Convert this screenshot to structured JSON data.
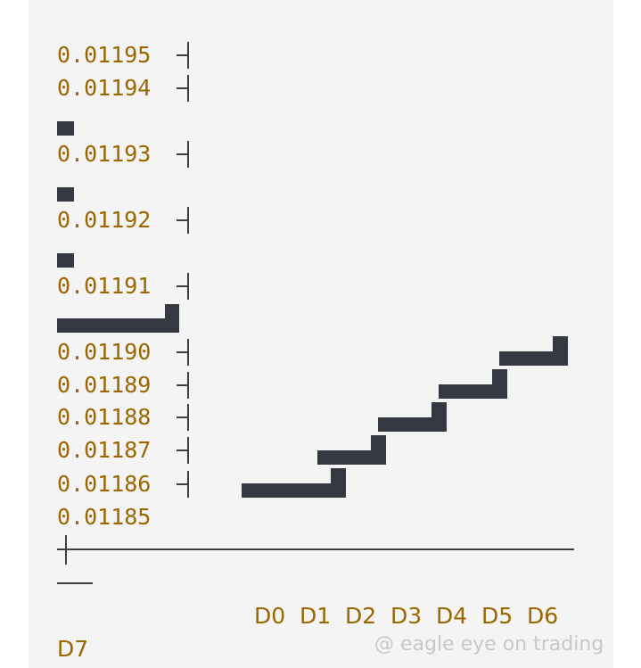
{
  "chart_data": {
    "type": "line",
    "style": "step",
    "title": "",
    "xlabel": "",
    "ylabel": "",
    "y_ticks": [
      "0.01195",
      "0.01194",
      "0.01193",
      "0.01192",
      "0.01191",
      "0.01190",
      "0.01189",
      "0.01188",
      "0.01187",
      "0.01186",
      "0.01185"
    ],
    "x_ticks": [
      "D0",
      "D1",
      "D2",
      "D3",
      "D4",
      "D5",
      "D6",
      "D7"
    ],
    "ylim": [
      0.01185,
      0.01195
    ],
    "grid": false,
    "series": [
      {
        "values": [
          0.01186,
          0.01187,
          0.01188,
          0.01189,
          0.0119
        ]
      }
    ],
    "colors": {
      "mark": "#343841",
      "labels": "#9a6700",
      "axis": "#3b3f46",
      "background": "#f4f4f4"
    }
  },
  "watermark": "@ eagle eye on trading"
}
